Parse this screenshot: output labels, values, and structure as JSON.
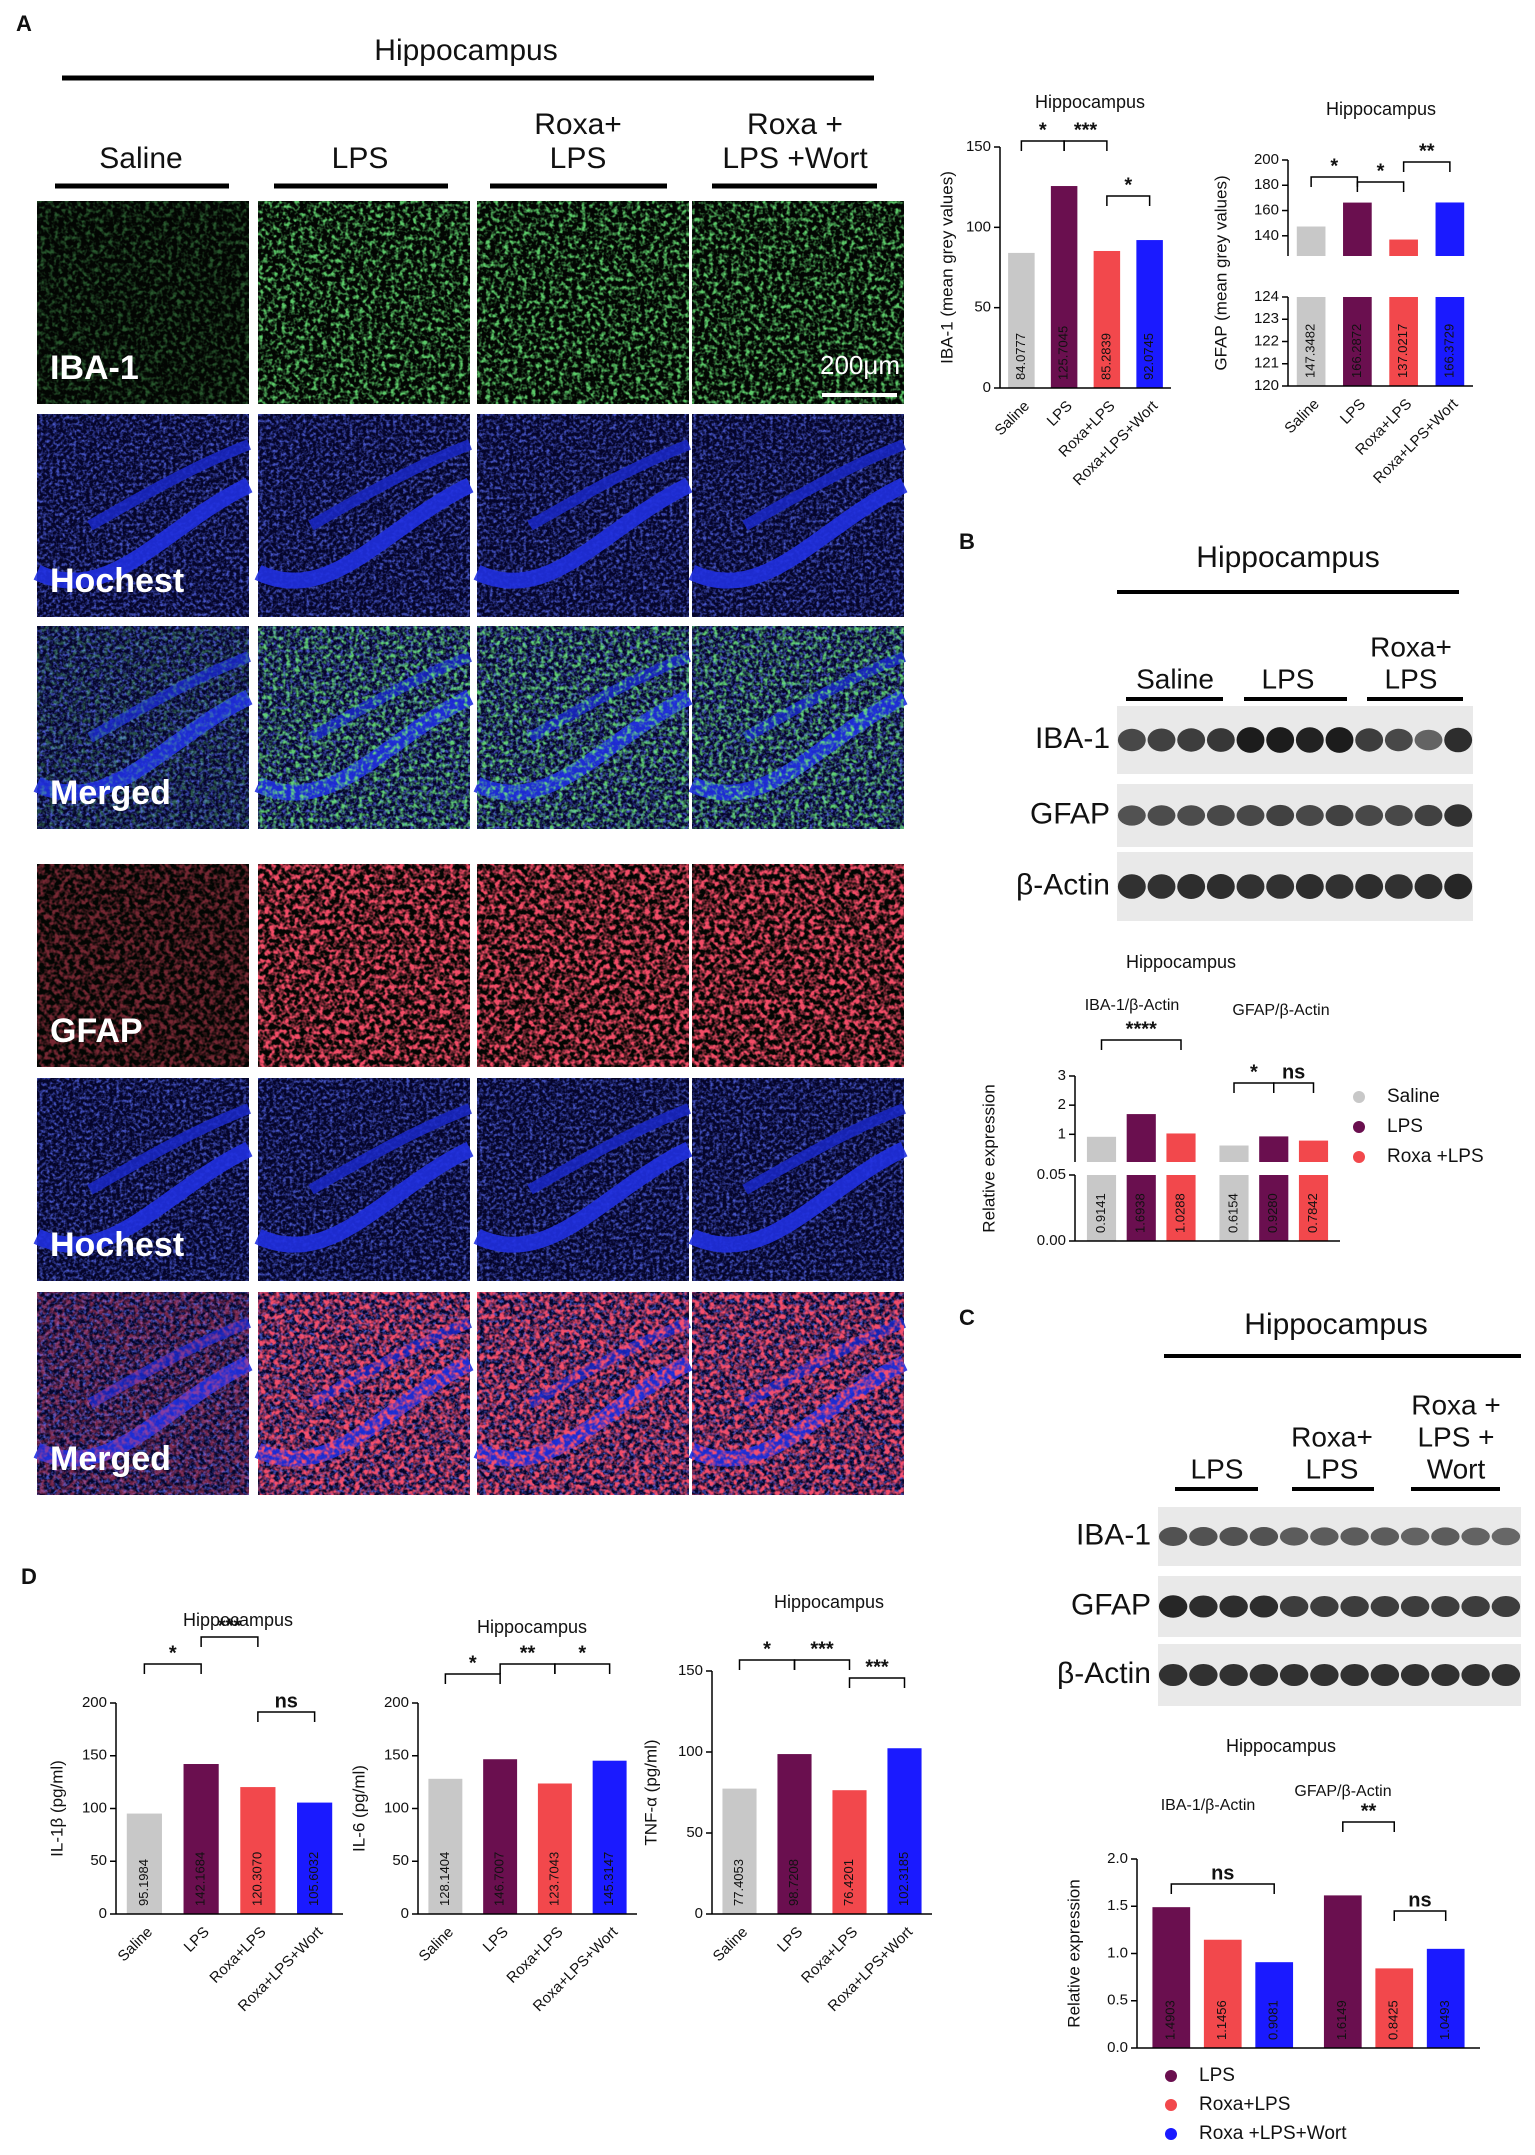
{
  "figure": {
    "panels": [
      "A",
      "B",
      "C",
      "D"
    ],
    "A": {
      "title": "Hippocampus",
      "columns": [
        [
          "Saline"
        ],
        [
          "LPS"
        ],
        [
          "Roxa+",
          "LPS"
        ],
        [
          "Roxa +",
          "LPS +Wort"
        ]
      ],
      "rows": [
        "IBA-1",
        "Hochest",
        "Merged",
        "GFAP",
        "Hochest",
        "Merged"
      ],
      "scale_bar": "200μm"
    },
    "B_blot": {
      "title": "Hippocampus",
      "groups": [
        [
          "Saline"
        ],
        [
          "LPS"
        ],
        [
          "Roxa+",
          "LPS"
        ]
      ],
      "rows": [
        "IBA-1",
        "GFAP",
        "β-Actin"
      ]
    },
    "C_blot": {
      "title": "Hippocampus",
      "groups": [
        [
          "LPS"
        ],
        [
          "Roxa+",
          "LPS"
        ],
        [
          "Roxa +",
          "LPS +",
          "Wort"
        ]
      ],
      "rows": [
        "IBA-1",
        "GFAP",
        "β-Actin"
      ]
    }
  },
  "chart_data": [
    {
      "type": "bar",
      "title": "Hippocampus",
      "y_label": "IBA-1 (mean grey values)",
      "categories": [
        "Saline",
        "LPS",
        "Roxa+LPS",
        "Roxa+LPS+Wort"
      ],
      "values": [
        84.0777,
        125.7045,
        85.2839,
        92.0745
      ],
      "colors": [
        "#c8c8c8",
        "#6a0f4f",
        "#f2484c",
        "#1a1aff"
      ],
      "ylim": [
        0,
        150
      ],
      "yticks": [
        0,
        50,
        100,
        150
      ],
      "annotations": [
        "*",
        "***",
        "*"
      ]
    },
    {
      "type": "bar",
      "title": "Hippocampus",
      "y_label": "GFAP (mean grey values)",
      "categories": [
        "Saline",
        "LPS",
        "Roxa+LPS",
        "Roxa+LPS+Wort"
      ],
      "values": [
        147.3482,
        166.2872,
        137.0217,
        166.3729
      ],
      "colors": [
        "#c8c8c8",
        "#6a0f4f",
        "#f2484c",
        "#1a1aff"
      ],
      "ylim": [
        120,
        200
      ],
      "ybreak": 124,
      "yticks": [
        120,
        121,
        122,
        123,
        124,
        140,
        160,
        180,
        200
      ],
      "annotations": [
        "*",
        "*",
        "**"
      ]
    },
    {
      "type": "grouped_bar",
      "title": "Hippocampus",
      "y_label": "Relative expression",
      "categories": [
        "IBA-1/β-Actin",
        "GFAP/β-Actin"
      ],
      "series": [
        {
          "name": "Saline",
          "color": "#c8c8c8",
          "values": [
            0.9141,
            0.6154
          ],
          "value_labels": [
            "0.9141",
            "0.6154"
          ]
        },
        {
          "name": "LPS",
          "color": "#6a0f4f",
          "values": [
            1.6938,
            0.928
          ],
          "value_labels": [
            "1.6938",
            "0.9280"
          ]
        },
        {
          "name": "Roxa +LPS",
          "color": "#f2484c",
          "values": [
            1.0288,
            0.7842
          ],
          "value_labels": [
            "1.0288",
            "0.7842"
          ]
        }
      ],
      "ylim": [
        0,
        3
      ],
      "ybreak": 0.05,
      "yticks": [
        {
          "value": 0,
          "label": "0.00"
        },
        {
          "value": 0.05,
          "label": "0.05"
        },
        1,
        2,
        3
      ],
      "legend": "right",
      "annotations": [
        "****",
        "*",
        "ns"
      ]
    },
    {
      "type": "grouped_bar",
      "title": "Hippocampus",
      "y_label": "Relative expression",
      "categories": [
        "IBA-1/β-Actin",
        "GFAP/β-Actin"
      ],
      "series": [
        {
          "name": "LPS",
          "color": "#6a0f4f",
          "values": [
            1.4903,
            1.6149
          ],
          "value_labels": [
            "1.4903",
            "1.6149"
          ]
        },
        {
          "name": "Roxa+LPS",
          "color": "#f2484c",
          "values": [
            1.1456,
            0.8425
          ],
          "value_labels": [
            "1.1456",
            "0.8425"
          ]
        },
        {
          "name": "Roxa +LPS+Wort",
          "color": "#1a1aff",
          "values": [
            0.9081,
            1.0493
          ],
          "value_labels": [
            "0.9081",
            "1.0493"
          ]
        }
      ],
      "ylim": [
        0,
        2
      ],
      "yticks": [
        {
          "value": 0,
          "label": "0.0"
        },
        0.5,
        {
          "value": 1,
          "label": "1.0"
        },
        1.5,
        {
          "value": 2,
          "label": "2.0"
        }
      ],
      "legend": "bottom",
      "annotations": [
        "ns",
        "**",
        "ns"
      ]
    },
    {
      "type": "bar",
      "title": "Hippocampus",
      "y_label": "IL-1β (pg/ml)",
      "categories": [
        "Saline",
        "LPS",
        "Roxa+LPS",
        "Roxa+LPS+Wort"
      ],
      "values": [
        95.1984,
        142.1684,
        120.307,
        105.6032
      ],
      "value_labels": [
        "95.1984",
        "142.1684",
        "120.3070",
        "105.6032"
      ],
      "colors": [
        "#c8c8c8",
        "#6a0f4f",
        "#f2484c",
        "#1a1aff"
      ],
      "ylim": [
        0,
        200
      ],
      "yticks": [
        0,
        50,
        100,
        150,
        200
      ],
      "annotations": [
        "*",
        "***",
        "ns"
      ]
    },
    {
      "type": "bar",
      "title": "Hippocampus",
      "y_label": "IL-6 (pg/ml)",
      "categories": [
        "Saline",
        "LPS",
        "Roxa+LPS",
        "Roxa+LPS+Wort"
      ],
      "values": [
        128.1404,
        146.7007,
        123.7043,
        145.3147
      ],
      "colors": [
        "#c8c8c8",
        "#6a0f4f",
        "#f2484c",
        "#1a1aff"
      ],
      "ylim": [
        0,
        200
      ],
      "yticks": [
        0,
        50,
        100,
        150,
        200
      ],
      "annotations": [
        "*",
        "**",
        "*"
      ]
    },
    {
      "type": "bar",
      "title": "Hippocampus",
      "y_label": "TNF-α (pg/ml)",
      "categories": [
        "Saline",
        "LPS",
        "Roxa+LPS",
        "Roxa+LPS+Wort"
      ],
      "values": [
        77.4053,
        98.7208,
        76.4201,
        102.3185
      ],
      "colors": [
        "#c8c8c8",
        "#6a0f4f",
        "#f2484c",
        "#1a1aff"
      ],
      "ylim": [
        0,
        150
      ],
      "yticks": [
        0,
        50,
        100,
        150
      ],
      "annotations": [
        "*",
        "***",
        "***"
      ]
    }
  ]
}
